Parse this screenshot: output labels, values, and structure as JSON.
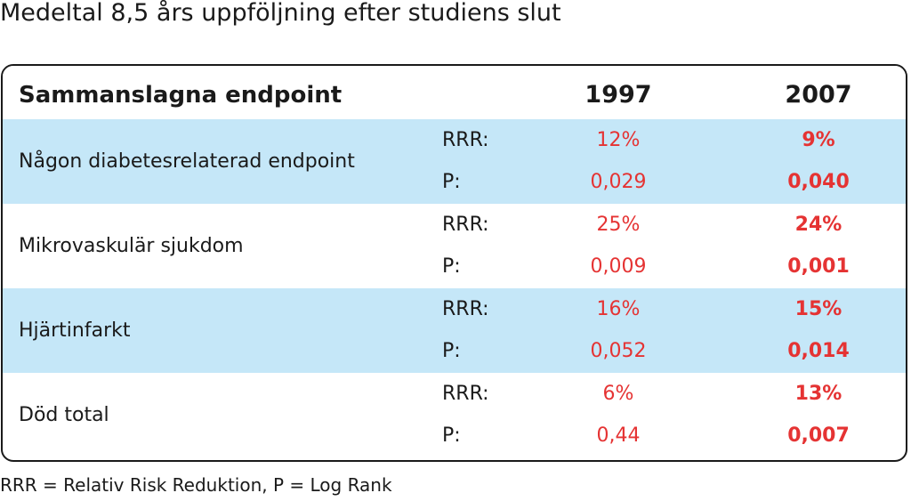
{
  "title": "Medeltal 8,5 års uppföljning efter studiens slut",
  "footnote": "RRR = Relativ Risk Reduktion, P = Log Rank",
  "chart_data": {
    "type": "table",
    "header": {
      "label": "Sammanslagna endpoint",
      "columns": [
        "1997",
        "2007"
      ]
    },
    "colors": {
      "shaded_row": "#c5e7f8",
      "value_text": "#e53333"
    },
    "rows": [
      {
        "endpoint": "Någon diabetesrelaterad endpoint",
        "metrics": [
          {
            "label": "RRR:",
            "v1997": "12%",
            "v2007": "9%"
          },
          {
            "label": "P:",
            "v1997": "0,029",
            "v2007": "0,040"
          }
        ]
      },
      {
        "endpoint": "Mikrovaskulär sjukdom",
        "metrics": [
          {
            "label": "RRR:",
            "v1997": "25%",
            "v2007": "24%"
          },
          {
            "label": "P:",
            "v1997": "0,009",
            "v2007": "0,001"
          }
        ]
      },
      {
        "endpoint": "Hjärtinfarkt",
        "metrics": [
          {
            "label": "RRR:",
            "v1997": "16%",
            "v2007": "15%"
          },
          {
            "label": "P:",
            "v1997": "0,052",
            "v2007": "0,014"
          }
        ]
      },
      {
        "endpoint": "Död total",
        "metrics": [
          {
            "label": "RRR:",
            "v1997": "6%",
            "v2007": "13%"
          },
          {
            "label": "P:",
            "v1997": "0,44",
            "v2007": "0,007"
          }
        ]
      }
    ]
  }
}
